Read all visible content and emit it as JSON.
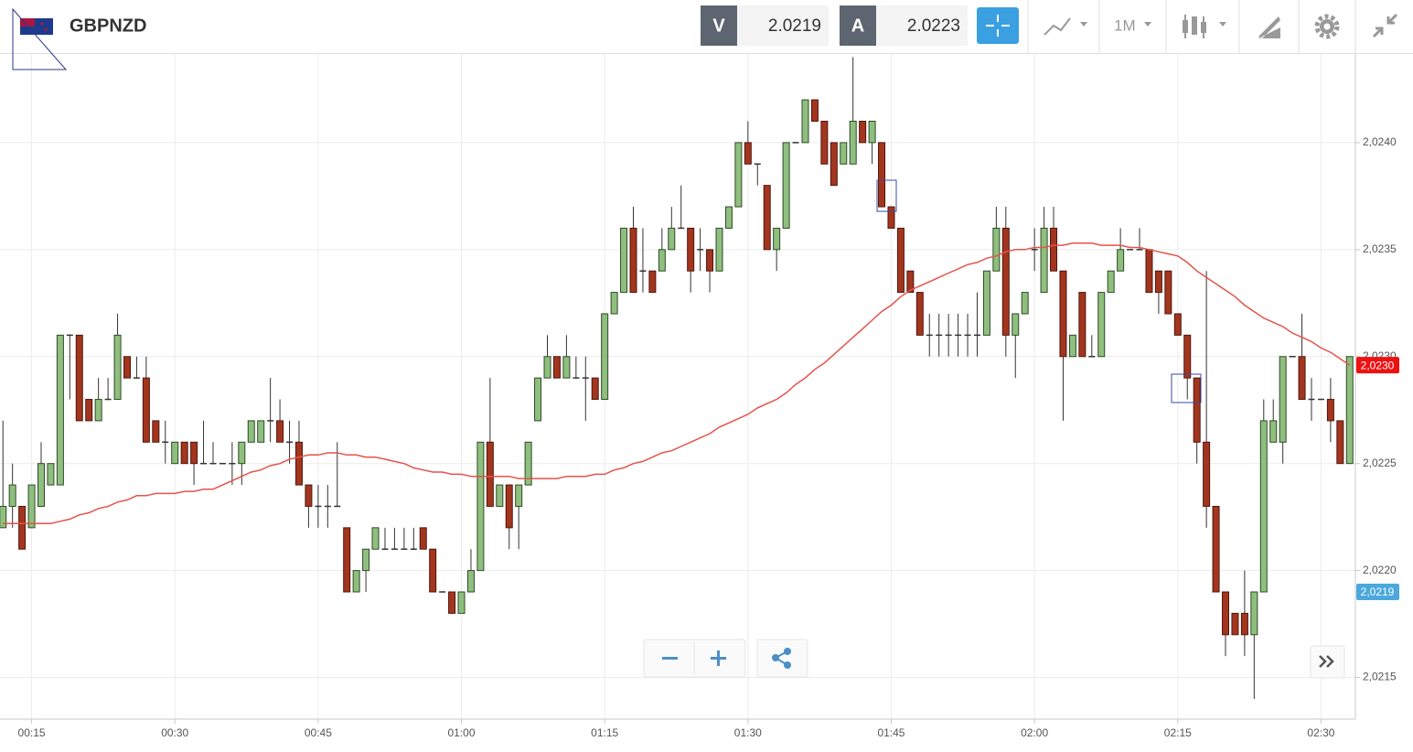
{
  "header": {
    "symbol": "GBPNZD",
    "sell_label": "V",
    "sell_price": 2.0219,
    "buy_label": "A",
    "buy_price": 2.0223,
    "timeframe": "1M"
  },
  "chart_data": {
    "type": "candlestick",
    "x": [
      "00:12",
      "00:13",
      "00:14",
      "00:15",
      "00:16",
      "00:17",
      "00:18",
      "00:19",
      "00:20",
      "00:21",
      "00:22",
      "00:23",
      "00:24",
      "00:25",
      "00:26",
      "00:27",
      "00:28",
      "00:29",
      "00:30",
      "00:31",
      "00:32",
      "00:33",
      "00:34",
      "00:35",
      "00:36",
      "00:37",
      "00:38",
      "00:39",
      "00:40",
      "00:41",
      "00:42",
      "00:43",
      "00:44",
      "00:45",
      "00:46",
      "00:47",
      "00:48",
      "00:49",
      "00:50",
      "00:51",
      "00:52",
      "00:53",
      "00:54",
      "00:55",
      "00:56",
      "00:57",
      "00:58",
      "00:59",
      "01:00",
      "01:01",
      "01:02",
      "01:03",
      "01:04",
      "01:05",
      "01:06",
      "01:07",
      "01:08",
      "01:09",
      "01:10",
      "01:11",
      "01:12",
      "01:13",
      "01:14",
      "01:15",
      "01:16",
      "01:17",
      "01:18",
      "01:19",
      "01:20",
      "01:21",
      "01:22",
      "01:23",
      "01:24",
      "01:25",
      "01:26",
      "01:27",
      "01:28",
      "01:29",
      "01:30",
      "01:31",
      "01:32",
      "01:33",
      "01:34",
      "01:35",
      "01:36",
      "01:37",
      "01:38",
      "01:39",
      "01:40",
      "01:41",
      "01:42",
      "01:43",
      "01:44",
      "01:45",
      "01:46",
      "01:47",
      "01:48",
      "01:49",
      "01:50",
      "01:51",
      "01:52",
      "01:53",
      "01:54",
      "01:55",
      "01:56",
      "01:57",
      "01:58",
      "01:59",
      "02:00",
      "02:01",
      "02:02",
      "02:03",
      "02:04",
      "02:05",
      "02:06",
      "02:07",
      "02:08",
      "02:09",
      "02:10",
      "02:11",
      "02:12",
      "02:13",
      "02:14",
      "02:15",
      "02:16",
      "02:17",
      "02:18",
      "02:19",
      "02:20",
      "02:21",
      "02:22",
      "02:23",
      "02:24",
      "02:25",
      "02:26",
      "02:27",
      "02:28",
      "02:29",
      "02:30",
      "02:31",
      "02:32",
      "02:33"
    ],
    "open": [
      2.0222,
      2.0223,
      2.0223,
      2.0222,
      2.0223,
      2.0224,
      2.0224,
      2.0231,
      2.0231,
      2.0228,
      2.0227,
      2.0228,
      2.0228,
      2.023,
      2.0229,
      2.0229,
      2.0227,
      2.0226,
      2.0225,
      2.0226,
      2.0226,
      2.0225,
      2.0225,
      2.0225,
      2.0225,
      2.0225,
      2.0226,
      2.0226,
      2.0227,
      2.0227,
      2.0226,
      2.0226,
      2.0224,
      2.0223,
      2.0223,
      2.0223,
      2.0222,
      2.0219,
      2.022,
      2.0221,
      2.0221,
      2.0221,
      2.0221,
      2.0221,
      2.0222,
      2.0221,
      2.0219,
      2.0219,
      2.0218,
      2.0219,
      2.022,
      2.0226,
      2.0223,
      2.0224,
      2.0223,
      2.0224,
      2.0227,
      2.0229,
      2.023,
      2.0229,
      2.0229,
      2.0229,
      2.0229,
      2.0228,
      2.0232,
      2.0233,
      2.0236,
      2.0234,
      2.0234,
      2.0234,
      2.0235,
      2.0236,
      2.0236,
      2.0235,
      2.0235,
      2.0234,
      2.0236,
      2.0237,
      2.024,
      2.0239,
      2.0238,
      2.0235,
      2.0236,
      2.024,
      2.024,
      2.0242,
      2.0241,
      2.024,
      2.0239,
      2.0239,
      2.0241,
      2.024,
      2.024,
      2.0237,
      2.0236,
      2.0234,
      2.0233,
      2.0231,
      2.0231,
      2.0231,
      2.0231,
      2.0231,
      2.0231,
      2.0231,
      2.0234,
      2.0236,
      2.0231,
      2.0232,
      2.0235,
      2.0233,
      2.0236,
      2.0234,
      2.023,
      2.0233,
      2.023,
      2.023,
      2.0233,
      2.0234,
      2.0235,
      2.0235,
      2.0235,
      2.0234,
      2.0234,
      2.0232,
      2.0231,
      2.0229,
      2.0226,
      2.0223,
      2.0219,
      2.0218,
      2.0218,
      2.0217,
      2.0219,
      2.0226,
      2.0226,
      2.023,
      2.023,
      2.0228,
      2.0228,
      2.0228,
      2.0227,
      2.0225
    ],
    "high": [
      2.0227,
      2.0225,
      2.0223,
      2.0224,
      2.0226,
      2.0225,
      2.0231,
      2.0231,
      2.0231,
      2.0228,
      2.0229,
      2.0229,
      2.0232,
      2.023,
      2.023,
      2.023,
      2.0227,
      2.0227,
      2.0226,
      2.0226,
      2.0226,
      2.0227,
      2.0226,
      2.0225,
      2.0226,
      2.0226,
      2.0227,
      2.0227,
      2.0229,
      2.0228,
      2.0227,
      2.0227,
      2.0224,
      2.0224,
      2.0224,
      2.0226,
      2.0222,
      2.022,
      2.0221,
      2.0222,
      2.0222,
      2.0222,
      2.0222,
      2.0222,
      2.0222,
      2.0221,
      2.0219,
      2.0219,
      2.0219,
      2.0221,
      2.0226,
      2.0229,
      2.0224,
      2.0224,
      2.0224,
      2.0226,
      2.0229,
      2.0231,
      2.023,
      2.0231,
      2.023,
      2.023,
      2.0229,
      2.0232,
      2.0233,
      2.0236,
      2.0237,
      2.0236,
      2.0234,
      2.0236,
      2.0237,
      2.0238,
      2.0236,
      2.0236,
      2.0235,
      2.0236,
      2.0237,
      2.024,
      2.0241,
      2.0239,
      2.0238,
      2.0236,
      2.024,
      2.024,
      2.0242,
      2.0242,
      2.0241,
      2.024,
      2.024,
      2.0244,
      2.0241,
      2.0241,
      2.024,
      2.0237,
      2.0236,
      2.0234,
      2.0233,
      2.0232,
      2.0232,
      2.0232,
      2.0232,
      2.0232,
      2.0233,
      2.0234,
      2.0237,
      2.0237,
      2.0232,
      2.0233,
      2.0236,
      2.0237,
      2.0237,
      2.0234,
      2.0231,
      2.0233,
      2.0231,
      2.0233,
      2.0234,
      2.0236,
      2.0235,
      2.0236,
      2.0235,
      2.0234,
      2.0234,
      2.0232,
      2.0231,
      2.0229,
      2.0234,
      2.0223,
      2.0219,
      2.0218,
      2.022,
      2.0219,
      2.0228,
      2.0228,
      2.023,
      2.023,
      2.0232,
      2.0229,
      2.0228,
      2.0229,
      2.0227,
      2.023
    ],
    "low": [
      2.0222,
      2.0222,
      2.0221,
      2.0222,
      2.0223,
      2.0224,
      2.0224,
      2.0228,
      2.0227,
      2.0227,
      2.0227,
      2.0228,
      2.0228,
      2.0229,
      2.0229,
      2.0226,
      2.0226,
      2.0225,
      2.0225,
      2.0225,
      2.0224,
      2.0225,
      2.0225,
      2.0225,
      2.0224,
      2.0224,
      2.0226,
      2.0226,
      2.0226,
      2.0226,
      2.0225,
      2.0224,
      2.0222,
      2.0222,
      2.0222,
      2.0223,
      2.0219,
      2.0219,
      2.0219,
      2.0221,
      2.0221,
      2.0221,
      2.0221,
      2.0221,
      2.0221,
      2.0219,
      2.0219,
      2.0218,
      2.0218,
      2.0219,
      2.022,
      2.0223,
      2.0223,
      2.0221,
      2.0221,
      2.0224,
      2.0227,
      2.0229,
      2.0229,
      2.0229,
      2.0229,
      2.0227,
      2.0228,
      2.0228,
      2.0232,
      2.0233,
      2.0233,
      2.0233,
      2.0233,
      2.0234,
      2.0235,
      2.0236,
      2.0233,
      2.0234,
      2.0233,
      2.0234,
      2.0236,
      2.0237,
      2.0239,
      2.0238,
      2.0235,
      2.0234,
      2.0236,
      2.024,
      2.024,
      2.0241,
      2.0239,
      2.0238,
      2.0239,
      2.0239,
      2.024,
      2.0239,
      2.0237,
      2.0236,
      2.0233,
      2.0233,
      2.0231,
      2.023,
      2.023,
      2.023,
      2.023,
      2.023,
      2.023,
      2.0231,
      2.0234,
      2.023,
      2.0229,
      2.0232,
      2.0234,
      2.0233,
      2.0234,
      2.0227,
      2.023,
      2.023,
      2.023,
      2.023,
      2.0233,
      2.0234,
      2.0235,
      2.0235,
      2.0233,
      2.0232,
      2.0232,
      2.0231,
      2.0228,
      2.0225,
      2.0222,
      2.0219,
      2.0216,
      2.0217,
      2.0216,
      2.0214,
      2.0219,
      2.0226,
      2.0225,
      2.023,
      2.0228,
      2.0227,
      2.0228,
      2.0226,
      2.0225,
      2.0225
    ],
    "close": [
      2.0223,
      2.0224,
      2.0221,
      2.0224,
      2.0225,
      2.0225,
      2.0231,
      2.0231,
      2.0227,
      2.0227,
      2.0228,
      2.0228,
      2.0231,
      2.0229,
      2.0229,
      2.0226,
      2.0226,
      2.0226,
      2.0226,
      2.0225,
      2.0225,
      2.0225,
      2.0225,
      2.0225,
      2.0225,
      2.0226,
      2.0227,
      2.0227,
      2.0227,
      2.0226,
      2.0226,
      2.0224,
      2.0223,
      2.0223,
      2.0223,
      2.0223,
      2.0219,
      2.022,
      2.0221,
      2.0222,
      2.0221,
      2.0221,
      2.0221,
      2.0221,
      2.0221,
      2.0219,
      2.0219,
      2.0218,
      2.0219,
      2.022,
      2.0226,
      2.0223,
      2.0224,
      2.0222,
      2.0224,
      2.0226,
      2.0229,
      2.023,
      2.0229,
      2.023,
      2.0229,
      2.0229,
      2.0228,
      2.0232,
      2.0233,
      2.0236,
      2.0233,
      2.0234,
      2.0233,
      2.0235,
      2.0236,
      2.0236,
      2.0234,
      2.0235,
      2.0234,
      2.0236,
      2.0237,
      2.024,
      2.0239,
      2.0239,
      2.0235,
      2.0236,
      2.024,
      2.024,
      2.0242,
      2.0241,
      2.0239,
      2.0238,
      2.024,
      2.0241,
      2.024,
      2.0241,
      2.0237,
      2.0236,
      2.0233,
      2.0233,
      2.0231,
      2.0231,
      2.0231,
      2.0231,
      2.0231,
      2.0231,
      2.0231,
      2.0234,
      2.0236,
      2.0231,
      2.0232,
      2.0233,
      2.0235,
      2.0236,
      2.0234,
      2.023,
      2.0231,
      2.023,
      2.023,
      2.0233,
      2.0234,
      2.0235,
      2.0235,
      2.0235,
      2.0233,
      2.0233,
      2.0232,
      2.0231,
      2.0229,
      2.0226,
      2.0223,
      2.0219,
      2.0217,
      2.0217,
      2.0217,
      2.0219,
      2.0227,
      2.0227,
      2.023,
      2.023,
      2.0228,
      2.0228,
      2.0228,
      2.0227,
      2.0225,
      2.023
    ],
    "up_color": "#8fbf7f",
    "down_color": "#a3351f",
    "wick_color": "#333333",
    "ma": {
      "color": "#e5534b",
      "values": [
        2.02222,
        2.02222,
        2.02222,
        2.02222,
        2.02222,
        2.02222,
        2.02223,
        2.02224,
        2.02226,
        2.02227,
        2.02229,
        2.0223,
        2.02232,
        2.02233,
        2.02235,
        2.02235,
        2.02236,
        2.02236,
        2.02236,
        2.02237,
        2.02237,
        2.02238,
        2.02238,
        2.0224,
        2.02242,
        2.02244,
        2.02246,
        2.02247,
        2.02249,
        2.0225,
        2.02252,
        2.02253,
        2.02254,
        2.02254,
        2.02255,
        2.02255,
        2.02254,
        2.02254,
        2.02253,
        2.02253,
        2.02252,
        2.02251,
        2.0225,
        2.02248,
        2.02247,
        2.02246,
        2.02246,
        2.02245,
        2.02245,
        2.02244,
        2.02244,
        2.02244,
        2.02244,
        2.02244,
        2.02243,
        2.02243,
        2.02243,
        2.02243,
        2.02243,
        2.02244,
        2.02244,
        2.02244,
        2.02245,
        2.02245,
        2.02247,
        2.02248,
        2.0225,
        2.02251,
        2.02253,
        2.02255,
        2.02256,
        2.02258,
        2.0226,
        2.02262,
        2.02264,
        2.02267,
        2.02269,
        2.02271,
        2.02273,
        2.02276,
        2.02278,
        2.0228,
        2.02283,
        2.02287,
        2.0229,
        2.02294,
        2.02297,
        2.02301,
        2.02305,
        2.02309,
        2.02313,
        2.02317,
        2.02321,
        2.02324,
        2.02328,
        2.02331,
        2.02333,
        2.02335,
        2.02337,
        2.02339,
        2.02341,
        2.02343,
        2.02344,
        2.02346,
        2.02347,
        2.02349,
        2.0235,
        2.0235,
        2.02351,
        2.02351,
        2.02352,
        2.02352,
        2.02353,
        2.02353,
        2.02353,
        2.02352,
        2.02352,
        2.02352,
        2.02351,
        2.02351,
        2.0235,
        2.02349,
        2.02348,
        2.02347,
        2.02344,
        2.0234,
        2.02337,
        2.02334,
        2.02331,
        2.02328,
        2.02324,
        2.02321,
        2.02318,
        2.02316,
        2.02314,
        2.02311,
        2.02309,
        2.02307,
        2.02304,
        2.02302,
        2.02299,
        2.02296
      ]
    },
    "ylim": [
      2.02131,
      2.02441
    ],
    "yticks": [
      {
        "value": 2.0215,
        "label": "2,0215"
      },
      {
        "value": 2.022,
        "label": "2,0220"
      },
      {
        "value": 2.0225,
        "label": "2,0225"
      },
      {
        "value": 2.023,
        "label": "2,0230"
      },
      {
        "value": 2.0235,
        "label": "2,0235"
      },
      {
        "value": 2.024,
        "label": "2,0240"
      }
    ],
    "xticks": [
      "00:15",
      "00:30",
      "00:45",
      "01:00",
      "01:15",
      "01:30",
      "01:45",
      "02:00",
      "02:15",
      "02:30"
    ],
    "grid": true,
    "price_tags": [
      {
        "value": 2.02296,
        "label": "2,0230",
        "color": "#ee1111"
      },
      {
        "value": 2.0219,
        "label": "2,0219",
        "color": "#4aa8dc"
      }
    ]
  }
}
